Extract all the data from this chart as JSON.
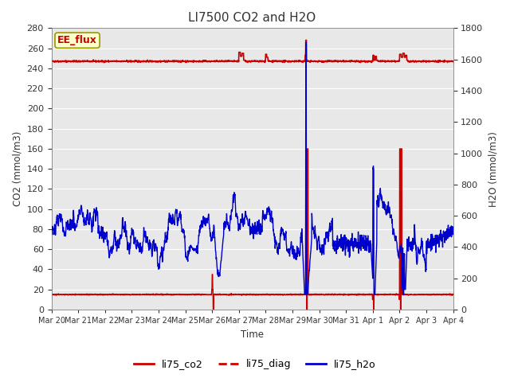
{
  "title": "LI7500 CO2 and H2O",
  "xlabel": "Time",
  "ylabel_left": "CO2 (mmol/m3)",
  "ylabel_right": "H2O (mmol/m3)",
  "ylim_left": [
    0,
    280
  ],
  "ylim_right": [
    0,
    1800
  ],
  "annotation": "EE_flux",
  "plot_bg_color": "#e8e8e8",
  "colors": {
    "co2": "#cc0000",
    "diag": "#cc0000",
    "h2o": "#0000cc"
  },
  "legend_entries": [
    "li75_co2",
    "li75_diag",
    "li75_h2o"
  ],
  "x_tick_labels": [
    "Mar 20",
    "Mar 21",
    "Mar 22",
    "Mar 23",
    "Mar 24",
    "Mar 25",
    "Mar 26",
    "Mar 27",
    "Mar 28",
    "Mar 29",
    "Mar 30",
    "Mar 31",
    "Apr 1",
    "Apr 2",
    "Apr 3",
    "Apr 4"
  ],
  "x_tick_positions": [
    0,
    1,
    2,
    3,
    4,
    5,
    6,
    7,
    8,
    9,
    10,
    11,
    12,
    13,
    14,
    15
  ],
  "yticks_left": [
    0,
    20,
    40,
    60,
    80,
    100,
    120,
    140,
    160,
    180,
    200,
    220,
    240,
    260,
    280
  ],
  "yticks_right": [
    0,
    200,
    400,
    600,
    800,
    1000,
    1200,
    1400,
    1600,
    1800
  ]
}
